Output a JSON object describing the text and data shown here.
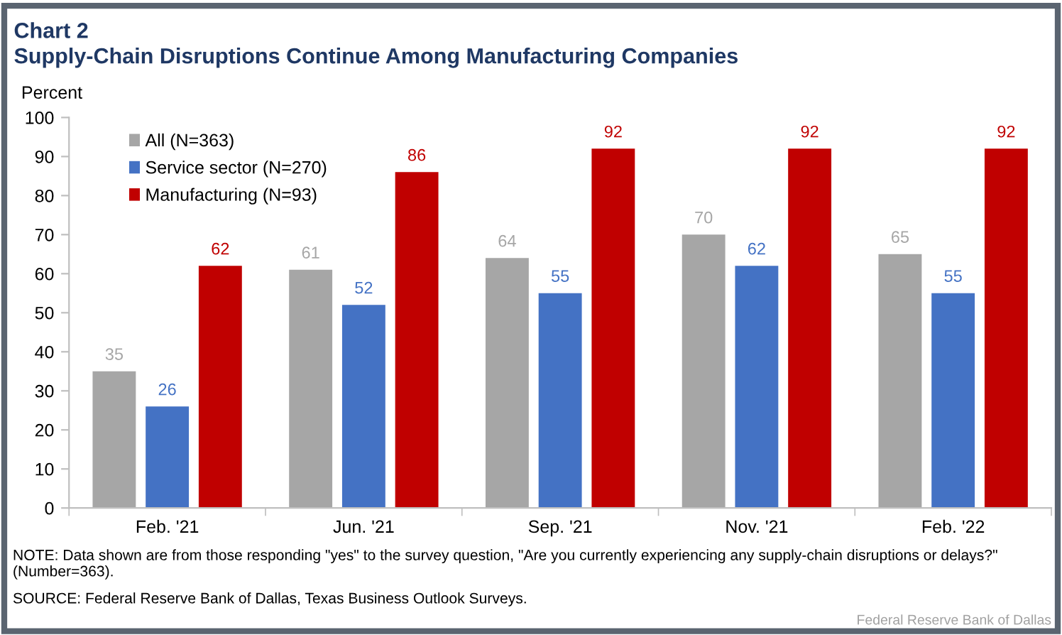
{
  "chart_data": {
    "type": "bar",
    "title": "Chart 2",
    "subtitle": "Supply-Chain Disruptions Continue Among Manufacturing Companies",
    "ylabel": "Percent",
    "categories": [
      "Feb. '21",
      "Jun. '21",
      "Sep. '21",
      "Nov. '21",
      "Feb. '22"
    ],
    "series": [
      {
        "name": "All (N=363)",
        "color": "#a6a6a6",
        "values": [
          35,
          61,
          64,
          70,
          65
        ]
      },
      {
        "name": "Service sector (N=270)",
        "color": "#4472c4",
        "values": [
          26,
          52,
          55,
          62,
          55
        ]
      },
      {
        "name": "Manufacturing (N=93)",
        "color": "#c00000",
        "values": [
          62,
          86,
          92,
          92,
          92
        ]
      }
    ],
    "ylim": [
      0,
      100
    ],
    "yticks": [
      0,
      10,
      20,
      30,
      40,
      50,
      60,
      70,
      80,
      90,
      100
    ],
    "data_labels": true,
    "legend": "top left",
    "grid": false,
    "annotations": [
      "NOTE: Data shown are from those responding \"yes\" to the survey question, \"Are you currently experiencing any supply-chain disruptions or delays?\" (Number=363).",
      "SOURCE: Federal Reserve Bank of Dallas, Texas Business Outlook Surveys.",
      "Federal Reserve Bank of Dallas"
    ]
  }
}
